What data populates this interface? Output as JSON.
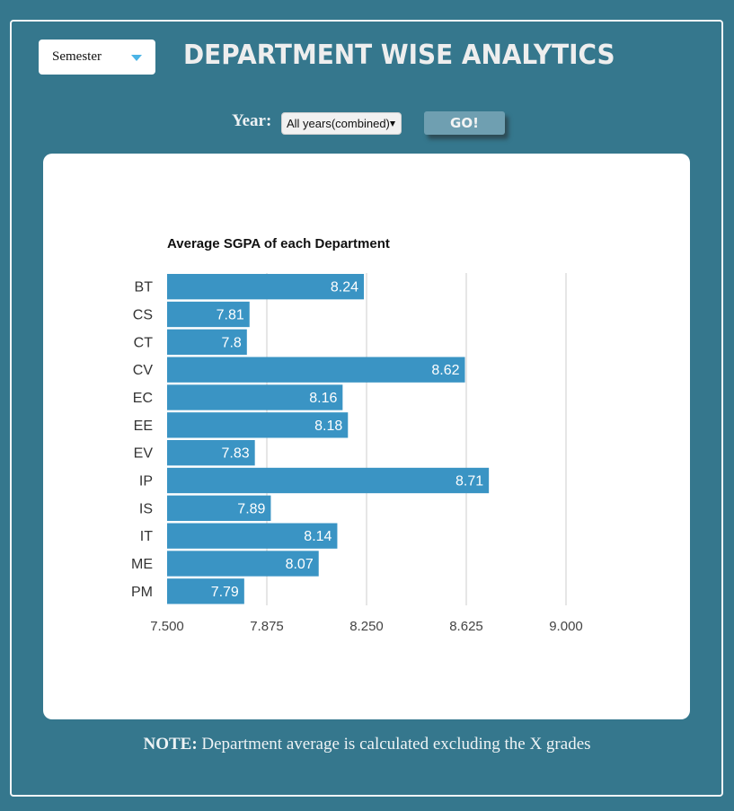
{
  "header": {
    "view_select": {
      "value": "Semester",
      "icon": "caret-down-icon"
    },
    "title": "Department Wise Analytics"
  },
  "filters": {
    "year_label": "Year:",
    "year_select": {
      "value": "All years(combined)",
      "icon": "caret-down-icon"
    },
    "go_label": "GO!"
  },
  "colors": {
    "background": "#35778d",
    "bar": "#3a94c4",
    "go_button": "#6f9fb1",
    "semester_caret": "#4bb4e6"
  },
  "note": {
    "prefix": "NOTE:",
    "text": " Department average is calculated excluding the X grades"
  },
  "chart_data": {
    "type": "bar",
    "orientation": "horizontal",
    "title": "Average SGPA of each Department",
    "xlabel": "",
    "ylabel": "",
    "categories": [
      "BT",
      "CS",
      "CT",
      "CV",
      "EC",
      "EE",
      "EV",
      "IP",
      "IS",
      "IT",
      "ME",
      "PM"
    ],
    "values": [
      8.24,
      7.81,
      7.8,
      8.62,
      8.16,
      8.18,
      7.83,
      8.71,
      7.89,
      8.14,
      8.07,
      7.79
    ],
    "value_labels": [
      "8.24",
      "7.81",
      "7.8",
      "8.62",
      "8.16",
      "8.18",
      "7.83",
      "8.71",
      "7.89",
      "8.14",
      "8.07",
      "7.79"
    ],
    "xlim": [
      7.5,
      9.0
    ],
    "xticks": [
      7.5,
      7.875,
      8.25,
      8.625,
      9.0
    ],
    "xtick_labels": [
      "7.500",
      "7.875",
      "8.250",
      "8.625",
      "9.000"
    ],
    "grid": true,
    "legend": "none"
  }
}
